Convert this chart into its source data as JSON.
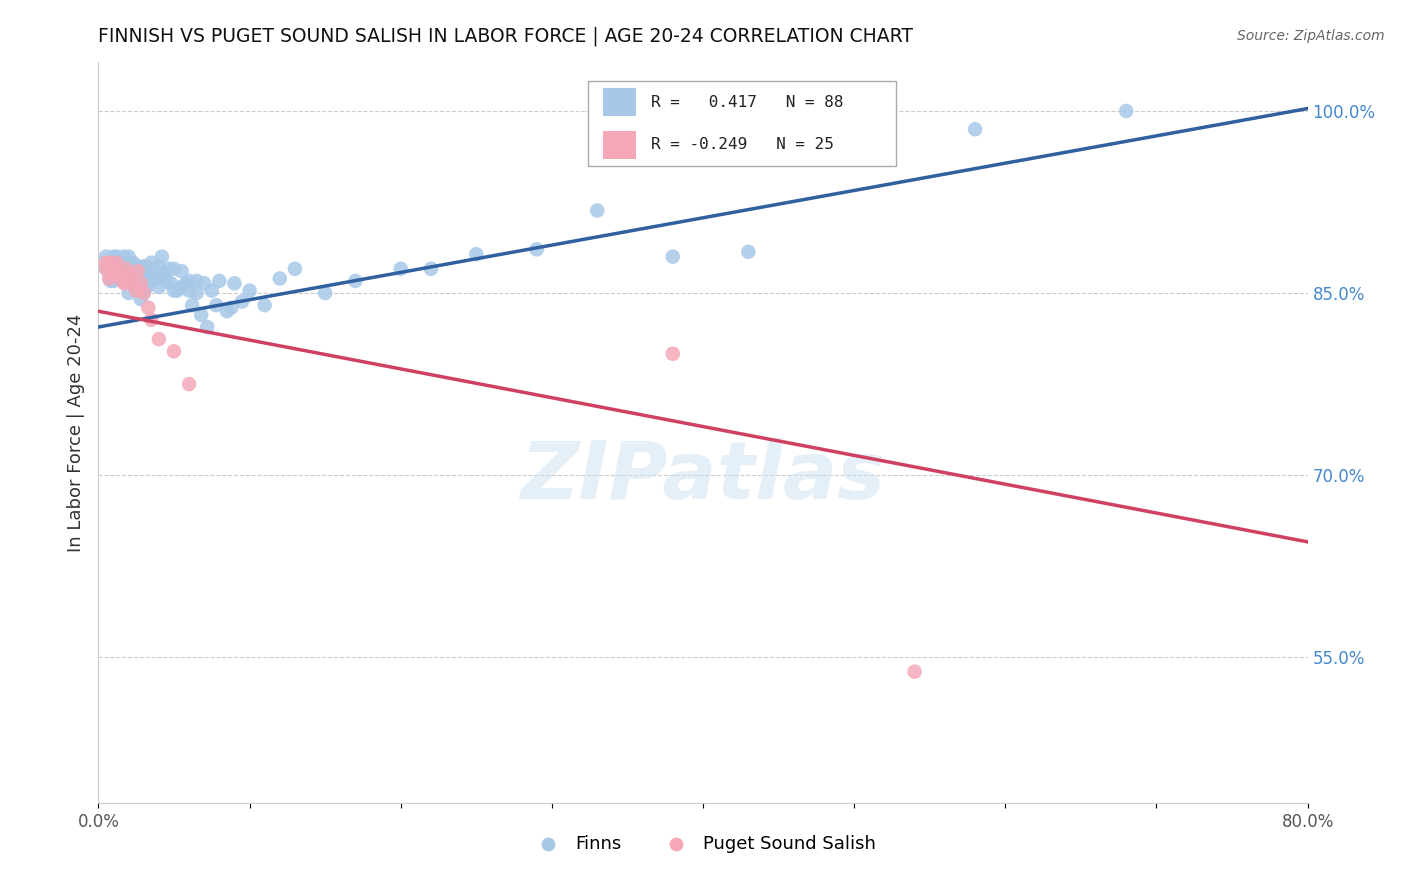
{
  "title": "FINNISH VS PUGET SOUND SALISH IN LABOR FORCE | AGE 20-24 CORRELATION CHART",
  "source": "Source: ZipAtlas.com",
  "ylabel": "In Labor Force | Age 20-24",
  "xlim": [
    0.0,
    0.8
  ],
  "ylim": [
    0.43,
    1.04
  ],
  "xticks": [
    0.0,
    0.1,
    0.2,
    0.3,
    0.4,
    0.5,
    0.6,
    0.7,
    0.8
  ],
  "xticklabels": [
    "0.0%",
    "",
    "",
    "",
    "",
    "",
    "",
    "",
    "80.0%"
  ],
  "yticks_right": [
    0.55,
    0.7,
    0.85,
    1.0
  ],
  "ytick_right_labels": [
    "55.0%",
    "70.0%",
    "85.0%",
    "100.0%"
  ],
  "legend_r_blue": "R =   0.417",
  "legend_n_blue": "N = 88",
  "legend_r_pink": "R = -0.249",
  "legend_n_pink": "N = 25",
  "blue_color": "#a8c8e8",
  "pink_color": "#f4a8b8",
  "blue_line_color": "#3060a0",
  "pink_line_color": "#d04060",
  "watermark": "ZIPatlas",
  "blue_line_x0": 0.0,
  "blue_line_y0": 0.822,
  "blue_line_x1": 0.8,
  "blue_line_y1": 1.002,
  "pink_line_x0": 0.0,
  "pink_line_y0": 0.835,
  "pink_line_x1": 0.8,
  "pink_line_y1": 0.645,
  "finns_x": [
    0.005,
    0.005,
    0.008,
    0.01,
    0.01,
    0.01,
    0.012,
    0.012,
    0.013,
    0.015,
    0.015,
    0.015,
    0.017,
    0.017,
    0.018,
    0.018,
    0.02,
    0.02,
    0.02,
    0.02,
    0.022,
    0.022,
    0.023,
    0.023,
    0.024,
    0.025,
    0.025,
    0.026,
    0.026,
    0.027,
    0.027,
    0.028,
    0.028,
    0.03,
    0.03,
    0.03,
    0.032,
    0.032,
    0.033,
    0.033,
    0.035,
    0.035,
    0.036,
    0.038,
    0.04,
    0.04,
    0.04,
    0.042,
    0.043,
    0.045,
    0.047,
    0.048,
    0.05,
    0.05,
    0.052,
    0.055,
    0.055,
    0.058,
    0.06,
    0.06,
    0.062,
    0.065,
    0.065,
    0.068,
    0.07,
    0.072,
    0.075,
    0.078,
    0.08,
    0.085,
    0.088,
    0.09,
    0.095,
    0.1,
    0.11,
    0.12,
    0.13,
    0.15,
    0.17,
    0.2,
    0.22,
    0.25,
    0.29,
    0.33,
    0.38,
    0.43,
    0.58,
    0.68
  ],
  "finns_y": [
    0.87,
    0.88,
    0.86,
    0.88,
    0.87,
    0.86,
    0.88,
    0.875,
    0.87,
    0.875,
    0.87,
    0.862,
    0.88,
    0.87,
    0.875,
    0.862,
    0.88,
    0.87,
    0.862,
    0.85,
    0.87,
    0.862,
    0.875,
    0.862,
    0.865,
    0.87,
    0.855,
    0.872,
    0.862,
    0.87,
    0.855,
    0.868,
    0.845,
    0.872,
    0.862,
    0.85,
    0.87,
    0.855,
    0.87,
    0.858,
    0.875,
    0.86,
    0.87,
    0.862,
    0.872,
    0.862,
    0.855,
    0.88,
    0.866,
    0.86,
    0.87,
    0.858,
    0.87,
    0.852,
    0.852,
    0.868,
    0.855,
    0.858,
    0.86,
    0.852,
    0.84,
    0.86,
    0.85,
    0.832,
    0.858,
    0.822,
    0.852,
    0.84,
    0.86,
    0.835,
    0.838,
    0.858,
    0.843,
    0.852,
    0.84,
    0.862,
    0.87,
    0.85,
    0.86,
    0.87,
    0.87,
    0.882,
    0.886,
    0.918,
    0.88,
    0.884,
    0.985,
    1.0
  ],
  "salish_x": [
    0.005,
    0.005,
    0.007,
    0.008,
    0.01,
    0.01,
    0.012,
    0.013,
    0.015,
    0.016,
    0.017,
    0.018,
    0.02,
    0.022,
    0.025,
    0.026,
    0.028,
    0.03,
    0.033,
    0.035,
    0.04,
    0.05,
    0.06,
    0.38,
    0.54
  ],
  "salish_y": [
    0.875,
    0.87,
    0.862,
    0.875,
    0.87,
    0.865,
    0.875,
    0.87,
    0.865,
    0.86,
    0.858,
    0.87,
    0.865,
    0.858,
    0.852,
    0.868,
    0.858,
    0.85,
    0.838,
    0.828,
    0.812,
    0.802,
    0.775,
    0.8,
    0.538
  ]
}
